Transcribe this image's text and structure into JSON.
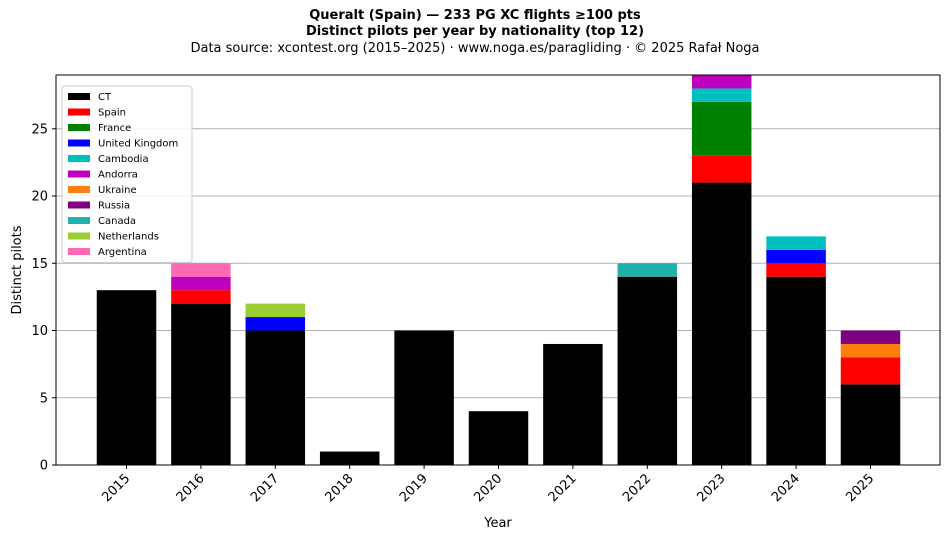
{
  "chart_data": {
    "type": "bar",
    "stacked": true,
    "title": "Queralt (Spain)  —  233 PG XC flights ≥100 pts",
    "subtitle": "Distinct pilots per year by nationality (top 12)",
    "source": "Data source: xcontest.org (2015–2025)  ·  www.noga.es/paragliding  ·  © 2025 Rafał Noga",
    "xlabel": "Year",
    "ylabel": "Distinct pilots",
    "ylim": [
      0,
      29
    ],
    "yticks": [
      0,
      5,
      10,
      15,
      20,
      25
    ],
    "grid": "y",
    "legend_position": "top-left",
    "categories": [
      "2015",
      "2016",
      "2017",
      "2018",
      "2019",
      "2020",
      "2021",
      "2022",
      "2023",
      "2024",
      "2025"
    ],
    "series": [
      {
        "name": "CT",
        "color": "#000000",
        "values": [
          13,
          12,
          10,
          1,
          10,
          4,
          9,
          14,
          21,
          14,
          6
        ]
      },
      {
        "name": "Spain",
        "color": "#ff0000",
        "values": [
          0,
          1,
          0,
          0,
          0,
          0,
          0,
          0,
          2,
          1,
          2
        ]
      },
      {
        "name": "France",
        "color": "#008000",
        "values": [
          0,
          0,
          0,
          0,
          0,
          0,
          0,
          0,
          4,
          0,
          0
        ]
      },
      {
        "name": "United Kingdom",
        "color": "#0000ff",
        "values": [
          0,
          0,
          1,
          0,
          0,
          0,
          0,
          0,
          0,
          1,
          0
        ]
      },
      {
        "name": "Cambodia",
        "color": "#00bfbf",
        "values": [
          0,
          0,
          0,
          0,
          0,
          0,
          0,
          0,
          1,
          1,
          0
        ]
      },
      {
        "name": "Andorra",
        "color": "#bf00bf",
        "values": [
          0,
          1,
          0,
          0,
          0,
          0,
          0,
          0,
          1,
          0,
          0
        ]
      },
      {
        "name": "Ukraine",
        "color": "#ff7f0e",
        "values": [
          0,
          0,
          0,
          0,
          0,
          0,
          0,
          0,
          0,
          0,
          1
        ]
      },
      {
        "name": "Russia",
        "color": "#800080",
        "values": [
          0,
          0,
          0,
          0,
          0,
          0,
          0,
          0,
          0,
          0,
          1
        ]
      },
      {
        "name": "Canada",
        "color": "#20b2aa",
        "values": [
          0,
          0,
          0,
          0,
          0,
          0,
          0,
          1,
          0,
          0,
          0
        ]
      },
      {
        "name": "Netherlands",
        "color": "#9acd32",
        "values": [
          0,
          0,
          1,
          0,
          0,
          0,
          0,
          0,
          0,
          0,
          0
        ]
      },
      {
        "name": "Argentina",
        "color": "#ff69b4",
        "values": [
          0,
          1,
          0,
          0,
          0,
          0,
          0,
          0,
          0,
          0,
          0
        ]
      }
    ]
  }
}
